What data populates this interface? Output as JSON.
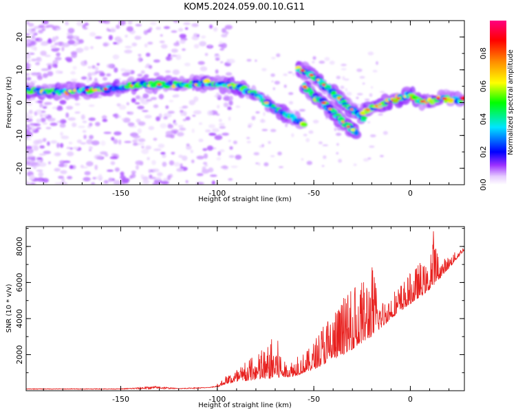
{
  "title": "KOM5.2024.059.00.10.G11",
  "chart_data": [
    {
      "type": "heatmap",
      "xlabel": "Height of straight line (km)",
      "ylabel": "Frequency (Hz)",
      "xlim": [
        -199,
        28
      ],
      "ylim": [
        -25,
        25
      ],
      "x_ticks": [
        -150,
        -100,
        -50,
        0
      ],
      "y_ticks": [
        -20,
        -10,
        0,
        10,
        20
      ],
      "colorbar": {
        "label": "Normalized spectral amplitude",
        "range": [
          0,
          1
        ],
        "ticks": [
          0.0,
          0.2,
          0.4,
          0.6,
          0.8
        ],
        "colormap": "white-violet-blue-cyan-green-yellow-red-magenta"
      },
      "ridges": [
        {
          "name": "main",
          "points": [
            [
              -199,
              3.5
            ],
            [
              -180,
              3.5
            ],
            [
              -160,
              4
            ],
            [
              -140,
              5.5
            ],
            [
              -120,
              5.5
            ],
            [
              -105,
              6
            ],
            [
              -95,
              5.5
            ],
            [
              -88,
              4.5
            ],
            [
              -80,
              2.5
            ],
            [
              -70,
              -2
            ],
            [
              -60,
              -5
            ],
            [
              -55,
              -7
            ]
          ]
        },
        {
          "name": "upper-branch",
          "points": [
            [
              -58,
              10.5
            ],
            [
              -50,
              8
            ],
            [
              -40,
              3
            ],
            [
              -33,
              -1
            ],
            [
              -28,
              -3
            ],
            [
              -24,
              -5
            ]
          ]
        },
        {
          "name": "lower-branch",
          "points": [
            [
              -55,
              5
            ],
            [
              -50,
              2
            ],
            [
              -45,
              0
            ],
            [
              -38,
              -4
            ],
            [
              -33,
              -7
            ],
            [
              -28,
              -9
            ]
          ]
        },
        {
          "name": "right",
          "points": [
            [
              -25,
              -3
            ],
            [
              -18,
              -1
            ],
            [
              -10,
              0.5
            ],
            [
              -5,
              1.5
            ],
            [
              0,
              2.5
            ],
            [
              3,
              1
            ],
            [
              8,
              0
            ],
            [
              15,
              1.5
            ],
            [
              20,
              1
            ],
            [
              28,
              1
            ]
          ]
        }
      ]
    },
    {
      "type": "line",
      "xlabel": "Height of straight line (km)",
      "ylabel": "SNR (10 * v/v)",
      "xlim": [
        -199,
        28
      ],
      "ylim": [
        0,
        9100
      ],
      "x_ticks": [
        -150,
        -100,
        -50,
        0
      ],
      "y_ticks": [
        2000,
        4000,
        6000,
        8000
      ],
      "color": "#e8211f",
      "envelope": [
        [
          -199,
          150
        ],
        [
          -150,
          150
        ],
        [
          -132,
          400
        ],
        [
          -120,
          150
        ],
        [
          -110,
          250
        ],
        [
          -105,
          200
        ],
        [
          -100,
          350
        ],
        [
          -95,
          900
        ],
        [
          -85,
          1600
        ],
        [
          -75,
          2400
        ],
        [
          -70,
          3300
        ],
        [
          -65,
          1600
        ],
        [
          -58,
          1900
        ],
        [
          -52,
          2400
        ],
        [
          -48,
          3200
        ],
        [
          -45,
          4000
        ],
        [
          -40,
          4600
        ],
        [
          -35,
          5100
        ],
        [
          -30,
          5600
        ],
        [
          -25,
          6000
        ],
        [
          -20,
          7200
        ],
        [
          -15,
          5000
        ],
        [
          -10,
          5500
        ],
        [
          -5,
          6000
        ],
        [
          0,
          6500
        ],
        [
          5,
          7200
        ],
        [
          10,
          6800
        ],
        [
          12,
          9100
        ],
        [
          15,
          7200
        ],
        [
          20,
          7500
        ],
        [
          28,
          8000
        ]
      ],
      "baseline": [
        [
          -199,
          80
        ],
        [
          -150,
          80
        ],
        [
          -110,
          120
        ],
        [
          -100,
          200
        ],
        [
          -95,
          400
        ],
        [
          -80,
          600
        ],
        [
          -70,
          700
        ],
        [
          -60,
          800
        ],
        [
          -50,
          1200
        ],
        [
          -40,
          1700
        ],
        [
          -30,
          2300
        ],
        [
          -20,
          3000
        ],
        [
          -10,
          4000
        ],
        [
          0,
          4800
        ],
        [
          10,
          5600
        ],
        [
          20,
          6800
        ],
        [
          28,
          7800
        ]
      ]
    }
  ]
}
